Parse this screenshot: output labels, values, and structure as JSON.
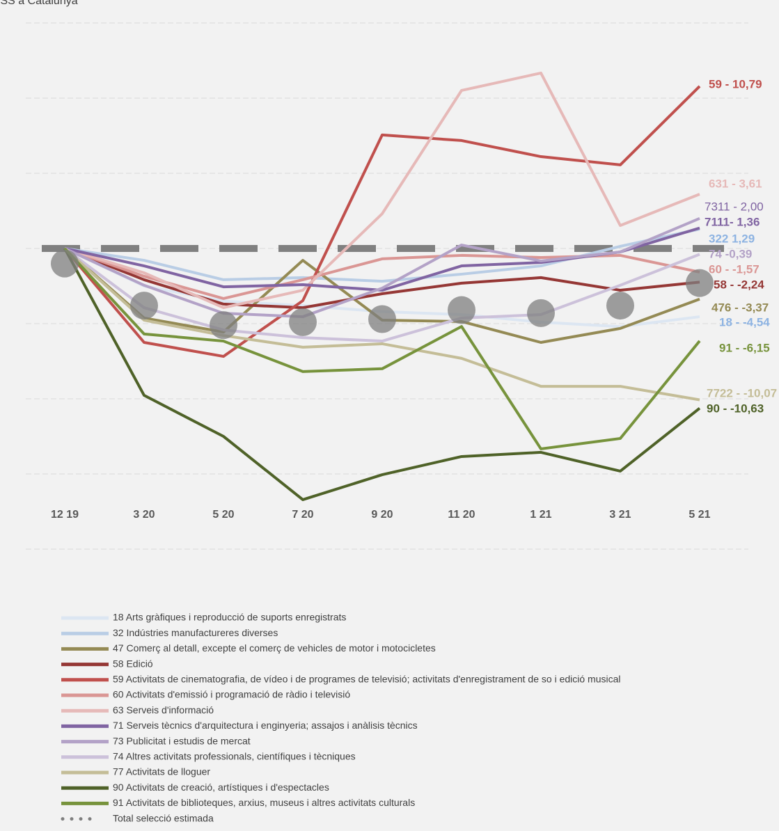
{
  "chart_data": {
    "type": "line",
    "title": "ISS a Catalunya",
    "categories": [
      "12 19",
      "3 20",
      "5 20",
      "7 20",
      "9 20",
      "11 20",
      "1 21",
      "3 21",
      "5 21"
    ],
    "ylim": [
      -20,
      15
    ],
    "yticks": [
      -20,
      -15,
      -10,
      -5,
      0,
      5,
      10,
      15
    ],
    "grid": true,
    "reference_line": 0,
    "legend": "bottom",
    "series": [
      {
        "name": "18 Arts gràfiques i reproducció de suports enregistrats",
        "color": "#dce6f2",
        "values": [
          0,
          -2.5,
          -3.5,
          -3.8,
          -4.2,
          -4.4,
          -4.9,
          -5.2,
          -4.54
        ],
        "value_labels": [
          null,
          null,
          null,
          null,
          null,
          null,
          null,
          null,
          "18 - -4,54"
        ]
      },
      {
        "name": "32 Indústries manufactureres diverses",
        "color": "#b9cde5",
        "values": [
          0,
          -0.79,
          -2.08,
          -1.94,
          -2.18,
          -1.71,
          -1.16,
          0.14,
          1.29
        ],
        "value_labels": [
          null,
          null,
          null,
          null,
          null,
          null,
          null,
          null,
          "322 1,29"
        ]
      },
      {
        "name": "47 Comerç al detall, excepte el comerç de vehicles de motor i motocicletes",
        "color": "#948a54",
        "values": [
          0,
          -4.63,
          -5.56,
          -0.79,
          -4.77,
          -4.86,
          -6.25,
          -5.32,
          -3.37
        ],
        "value_labels": [
          null,
          null,
          null,
          null,
          null,
          null,
          null,
          null,
          "476 - -3,37"
        ]
      },
      {
        "name": "58 Edició",
        "color": "#953735",
        "values": [
          0,
          -2.08,
          -3.7,
          -3.94,
          -3.01,
          -2.31,
          -1.94,
          -2.78,
          -2.24
        ],
        "value_labels": [
          null,
          null,
          null,
          null,
          null,
          null,
          null,
          null,
          "58 - -2,24"
        ]
      },
      {
        "name": "59 Activitats de cinematografia, de vídeo i de programes de televisió; activitats d'enregistrament de so i edició musical",
        "color": "#c0504d",
        "values": [
          0,
          -6.25,
          -7.18,
          -3.47,
          7.55,
          7.18,
          6.11,
          5.56,
          10.79
        ],
        "value_labels": [
          null,
          null,
          null,
          null,
          null,
          null,
          null,
          null,
          "59 - 10,79"
        ]
      },
      {
        "name": "60 Activitats d'emissió i programació de ràdio i televisió",
        "color": "#da9694",
        "values": [
          0,
          -1.85,
          -3.33,
          -2.08,
          -0.69,
          -0.46,
          -0.6,
          -0.46,
          -1.57
        ],
        "value_labels": [
          null,
          null,
          null,
          null,
          null,
          null,
          null,
          null,
          "60 - -1,57"
        ]
      },
      {
        "name": "63 Serveis d'informació",
        "color": "#e6b9b8",
        "values": [
          0,
          -1.62,
          -3.94,
          -2.78,
          2.31,
          10.51,
          11.67,
          1.53,
          3.61
        ],
        "value_labels": [
          null,
          null,
          null,
          null,
          null,
          null,
          null,
          null,
          "631 - 3,61"
        ]
      },
      {
        "name": "71 Serveis tècnics d'arquitectura i enginyeria; assajos i anàlisis tècnics",
        "color": "#8064a2",
        "values": [
          0,
          -1.16,
          -2.55,
          -2.41,
          -2.78,
          -1.16,
          -0.93,
          -0.23,
          1.36
        ],
        "value_labels": [
          null,
          null,
          null,
          null,
          null,
          null,
          null,
          null,
          "7111- 1,36"
        ]
      },
      {
        "name": "73 Publicitat i estudis de mercat",
        "color": "#b3a2c7",
        "values": [
          0,
          -2.45,
          -4.31,
          -4.54,
          -2.64,
          0.23,
          -0.83,
          -0.23,
          2.0
        ],
        "value_labels": [
          null,
          null,
          null,
          null,
          null,
          null,
          null,
          null,
          "7311 - 2,00"
        ]
      },
      {
        "name": "74 Altres activitats professionals, científiques i tècniques",
        "color": "#ccc1da",
        "values": [
          0,
          -3.94,
          -5.42,
          -5.93,
          -6.16,
          -4.63,
          -4.4,
          -2.45,
          -0.39
        ],
        "value_labels": [
          null,
          null,
          null,
          null,
          null,
          null,
          null,
          null,
          "74 -0,39"
        ]
      },
      {
        "name": "77 Activitats de lloguer",
        "color": "#c4bd97",
        "values": [
          0,
          -4.77,
          -5.79,
          -6.57,
          -6.34,
          -7.31,
          -9.17,
          -9.17,
          -10.07
        ],
        "value_labels": [
          null,
          null,
          null,
          null,
          null,
          null,
          null,
          null,
          "7722 - -10,07"
        ]
      },
      {
        "name": "90 Activitats de creació, artístiques i d'espectacles",
        "color": "#4f6228",
        "values": [
          0,
          -9.77,
          -12.5,
          -16.71,
          -15.05,
          -13.84,
          -13.56,
          -14.81,
          -10.63
        ],
        "value_labels": [
          null,
          null,
          null,
          null,
          null,
          null,
          null,
          null,
          "90 - -10,63"
        ]
      },
      {
        "name": "91 Activitats de biblioteques, arxius, museus i altres activitats culturals",
        "color": "#77933c",
        "values": [
          0,
          -5.69,
          -6.16,
          -8.19,
          -8.0,
          -5.19,
          -13.33,
          -12.64,
          -6.15
        ],
        "value_labels": [
          null,
          null,
          null,
          null,
          null,
          null,
          null,
          null,
          "91 - -6,15"
        ]
      },
      {
        "name": "Total selecció estimada",
        "color": "#7f7f7f",
        "style": "dots",
        "values": [
          -1,
          -3.8,
          -5.1,
          -4.9,
          -4.7,
          -4.1,
          -4.3,
          -3.8,
          -2.3
        ]
      }
    ]
  }
}
